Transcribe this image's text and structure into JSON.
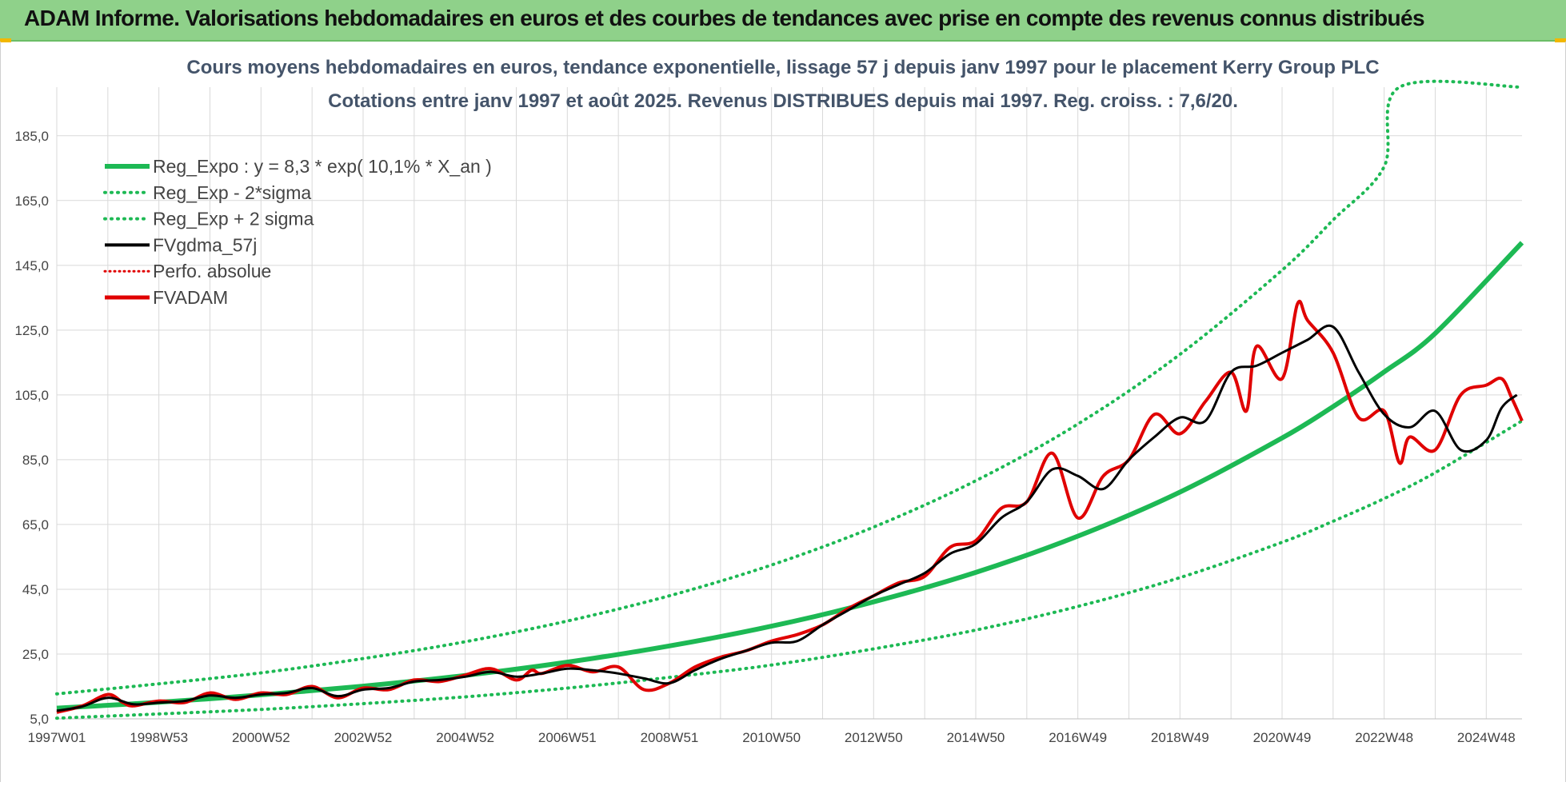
{
  "header": {
    "title": "ADAM Informe. Valorisations hebdomadaires en euros et des courbes de tendances avec prise en compte des revenus connus distribués"
  },
  "colors": {
    "banner": "#8fd18a",
    "reg_expo": "#1db954",
    "sigma_lines": "#1db954",
    "fvgdma": "#000000",
    "perfo_absolue": "#e00000",
    "fvadam": "#e00000",
    "grid": "#d9d9d9"
  },
  "chart_data": {
    "type": "line",
    "title_line1": "Cours moyens hebdomadaires en euros, tendance exponentielle, lissage 57 j depuis janv 1997  pour le placement Kerry Group PLC",
    "title_line2": "Cotations entre janv 1997 et août 2025.  Revenus DISTRIBUES depuis mai 1997. Reg. croiss. : 7,6/20.",
    "xlabel": "",
    "ylabel": "",
    "ylim": [
      5,
      200
    ],
    "xlim": [
      1997.0,
      2025.7
    ],
    "grid": true,
    "legend_position": "top-left",
    "y_ticks": [
      "5,0",
      "25,0",
      "45,0",
      "65,0",
      "85,0",
      "105,0",
      "125,0",
      "145,0",
      "165,0",
      "185,0"
    ],
    "x_ticks": [
      {
        "label": "1997W01",
        "x": 1997.0
      },
      {
        "label": "1998W53",
        "x": 1999.0
      },
      {
        "label": "2000W52",
        "x": 2001.0
      },
      {
        "label": "2002W52",
        "x": 2003.0
      },
      {
        "label": "2004W52",
        "x": 2005.0
      },
      {
        "label": "2006W51",
        "x": 2007.0
      },
      {
        "label": "2008W51",
        "x": 2009.0
      },
      {
        "label": "2010W50",
        "x": 2011.0
      },
      {
        "label": "2012W50",
        "x": 2013.0
      },
      {
        "label": "2014W50",
        "x": 2015.0
      },
      {
        "label": "2016W49",
        "x": 2017.0
      },
      {
        "label": "2018W49",
        "x": 2019.0
      },
      {
        "label": "2020W49",
        "x": 2021.0
      },
      {
        "label": "2022W48",
        "x": 2023.0
      },
      {
        "label": "2024W48",
        "x": 2025.0
      }
    ],
    "legend": [
      {
        "name": "Reg_Expo : y = 8,3 * exp( 10,1% *  X_an )",
        "style": "solid-thick-green"
      },
      {
        "name": "Reg_Exp - 2*sigma",
        "style": "dotted-green"
      },
      {
        "name": "Reg_Exp + 2 sigma",
        "style": "dotted-green"
      },
      {
        "name": "FVgdma_57j",
        "style": "solid-black"
      },
      {
        "name": "Perfo. absolue",
        "style": "dotted-red"
      },
      {
        "name": "FVADAM",
        "style": "solid-red"
      }
    ],
    "series": [
      {
        "name": "Reg_Expo : y = 8,3 * exp( 10,1% *  X_an )",
        "x": [
          1997.0,
          1999.0,
          2001.0,
          2003.0,
          2005.0,
          2007.0,
          2009.0,
          2011.0,
          2013.0,
          2015.0,
          2017.0,
          2019.0,
          2021.0,
          2022.0,
          2023.0,
          2024.0,
          2025.7
        ],
        "y": [
          8.3,
          10.1,
          12.4,
          15.1,
          18.4,
          22.5,
          27.5,
          33.6,
          41.1,
          50.2,
          61.4,
          75.0,
          91.7,
          101.4,
          112.1,
          124.0,
          152.0
        ]
      },
      {
        "name": "Reg_Exp - 2*sigma",
        "x": [
          1997.0,
          1999.0,
          2001.0,
          2003.0,
          2005.0,
          2007.0,
          2009.0,
          2011.0,
          2013.0,
          2015.0,
          2017.0,
          2019.0,
          2021.0,
          2022.0,
          2023.0,
          2024.0,
          2025.7
        ],
        "y": [
          5.2,
          6.5,
          7.9,
          9.7,
          11.8,
          14.5,
          17.8,
          21.6,
          26.6,
          32.4,
          39.7,
          48.6,
          59.5,
          66.0,
          73.0,
          81.0,
          97.0
        ]
      },
      {
        "name": "Reg_Exp + 2 sigma",
        "x": [
          1997.0,
          1999.0,
          2001.0,
          2003.0,
          2005.0,
          2007.0,
          2009.0,
          2011.0,
          2013.0,
          2015.0,
          2017.0,
          2019.0,
          2021.0,
          2022.0,
          2023.0,
          2023.3,
          2025.7
        ],
        "y": [
          12.7,
          15.8,
          19.2,
          23.6,
          28.8,
          35.2,
          43.0,
          52.5,
          64.2,
          78.5,
          96.0,
          117.5,
          143.5,
          159.0,
          175.5,
          200.0,
          200.0
        ]
      },
      {
        "name": "FVgdma_57j",
        "x": [
          1997.0,
          1997.5,
          1998.0,
          1998.5,
          1999.0,
          1999.5,
          2000.0,
          2000.5,
          2001.0,
          2001.5,
          2002.0,
          2002.5,
          2003.0,
          2003.5,
          2004.0,
          2004.5,
          2005.0,
          2005.5,
          2006.0,
          2006.5,
          2007.0,
          2007.5,
          2008.0,
          2008.5,
          2009.0,
          2009.5,
          2010.0,
          2010.5,
          2011.0,
          2011.5,
          2012.0,
          2012.5,
          2013.0,
          2013.5,
          2014.0,
          2014.5,
          2015.0,
          2015.5,
          2016.0,
          2016.5,
          2017.0,
          2017.5,
          2018.0,
          2018.5,
          2019.0,
          2019.5,
          2020.0,
          2020.5,
          2021.0,
          2021.5,
          2022.0,
          2022.5,
          2023.0,
          2023.5,
          2024.0,
          2024.5,
          2025.0,
          2025.3,
          2025.6
        ],
        "y": [
          7.5,
          8.8,
          11.5,
          9.5,
          10.0,
          10.5,
          12.2,
          11.5,
          12.5,
          13.0,
          14.5,
          12.0,
          14.0,
          14.5,
          16.5,
          17.0,
          18.0,
          19.5,
          18.0,
          19.0,
          20.5,
          20.0,
          19.0,
          17.5,
          16.0,
          20.0,
          23.5,
          26.0,
          28.5,
          29.0,
          34.0,
          38.5,
          43.0,
          46.5,
          50.0,
          56.0,
          59.0,
          67.0,
          72.0,
          82.0,
          80.0,
          76.0,
          85.0,
          92.0,
          98.0,
          97.0,
          112.0,
          114.0,
          118.0,
          122.0,
          126.0,
          112.0,
          99.0,
          95.0,
          100.0,
          88.0,
          91.0,
          101.0,
          105.0
        ]
      },
      {
        "name": "FVADAM",
        "x": [
          1997.0,
          1997.5,
          1998.0,
          1998.3,
          1998.5,
          1999.0,
          1999.5,
          2000.0,
          2000.5,
          2001.0,
          2001.5,
          2002.0,
          2002.5,
          2003.0,
          2003.5,
          2004.0,
          2004.5,
          2005.0,
          2005.5,
          2006.0,
          2006.3,
          2006.5,
          2007.0,
          2007.5,
          2008.0,
          2008.5,
          2009.0,
          2009.5,
          2010.0,
          2010.5,
          2011.0,
          2011.5,
          2012.0,
          2012.5,
          2013.0,
          2013.5,
          2014.0,
          2014.5,
          2015.0,
          2015.5,
          2016.0,
          2016.5,
          2017.0,
          2017.5,
          2018.0,
          2018.5,
          2019.0,
          2019.5,
          2020.0,
          2020.3,
          2020.5,
          2021.0,
          2021.3,
          2021.5,
          2022.0,
          2022.5,
          2023.0,
          2023.3,
          2023.5,
          2024.0,
          2024.5,
          2025.0,
          2025.3,
          2025.5,
          2025.7
        ],
        "y": [
          7.0,
          9.0,
          12.5,
          10.0,
          9.0,
          10.5,
          10.0,
          13.0,
          11.0,
          13.0,
          12.5,
          15.0,
          11.5,
          14.5,
          14.0,
          17.0,
          16.5,
          18.5,
          20.5,
          17.0,
          20.0,
          19.0,
          21.5,
          19.5,
          21.0,
          14.0,
          16.0,
          21.0,
          24.0,
          26.0,
          29.0,
          31.0,
          34.0,
          39.0,
          43.0,
          47.0,
          49.0,
          58.0,
          60.0,
          70.0,
          72.0,
          87.0,
          67.0,
          80.0,
          85.0,
          99.0,
          93.0,
          103.0,
          112.0,
          100.0,
          120.0,
          110.0,
          133.0,
          128.0,
          118.0,
          98.0,
          100.0,
          84.0,
          92.0,
          88.0,
          105.0,
          108.0,
          110.0,
          104.0,
          97.0
        ]
      }
    ]
  }
}
